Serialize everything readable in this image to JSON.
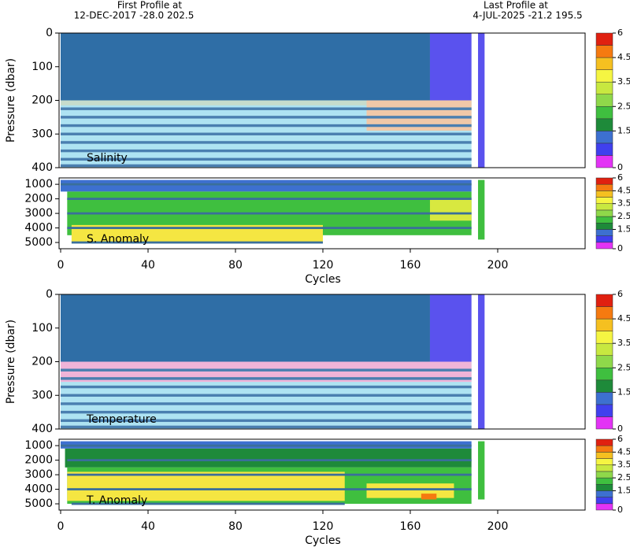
{
  "header": {
    "first_label": "First Profile at",
    "first_info": "12-DEC-2017   -28.0 202.5",
    "last_label": "Last Profile at",
    "last_info": "4-JUL-2025   -21.2 195.5"
  },
  "chart_data": [
    {
      "type": "section",
      "label": "Salinity",
      "ylabel": "Pressure (dbar)",
      "xlim": [
        0,
        240
      ],
      "ylim": [
        0,
        400
      ],
      "yticks": [
        0,
        100,
        200,
        300,
        400
      ],
      "blocks": [
        {
          "x": [
            0,
            169
          ],
          "y": [
            0,
            200
          ],
          "color": "#2f6ea6"
        },
        {
          "x": [
            169,
            188
          ],
          "y": [
            0,
            200
          ],
          "color": "#5a52ee"
        },
        {
          "x": [
            0,
            188
          ],
          "y": [
            200,
            400
          ],
          "color": "#aee3f2"
        },
        {
          "x": [
            0,
            188
          ],
          "y": [
            200,
            215
          ],
          "color": "#c7dccc"
        },
        {
          "x": [
            140,
            188
          ],
          "y": [
            200,
            290
          ],
          "color": "#f0c8a8"
        },
        {
          "x": [
            0,
            188
          ],
          "y": [
            221,
            229
          ],
          "color": "#4a7fb0"
        },
        {
          "x": [
            0,
            188
          ],
          "y": [
            246,
            254
          ],
          "color": "#4a7fb0"
        },
        {
          "x": [
            0,
            188
          ],
          "y": [
            271,
            279
          ],
          "color": "#4a7fb0"
        },
        {
          "x": [
            0,
            188
          ],
          "y": [
            296,
            304
          ],
          "color": "#4a7fb0"
        },
        {
          "x": [
            0,
            188
          ],
          "y": [
            321,
            329
          ],
          "color": "#4a7fb0"
        },
        {
          "x": [
            0,
            188
          ],
          "y": [
            346,
            354
          ],
          "color": "#4a7fb0"
        },
        {
          "x": [
            0,
            188
          ],
          "y": [
            371,
            379
          ],
          "color": "#4a7fb0"
        },
        {
          "x": [
            0,
            188
          ],
          "y": [
            390,
            398
          ],
          "color": "#4a7fb0"
        },
        {
          "x": [
            191,
            194
          ],
          "y": [
            0,
            400
          ],
          "color": "#5a52ee"
        }
      ],
      "colorbar": {
        "bounds": [
          0,
          0.5,
          1,
          1.5,
          2,
          2.5,
          3,
          3.5,
          4,
          4.5,
          5,
          6
        ],
        "colors": [
          "#e333f5",
          "#4040ee",
          "#3d70d0",
          "#1e8a3a",
          "#3fbf3f",
          "#8fd84a",
          "#c8e840",
          "#f5f542",
          "#f5c020",
          "#f57a10",
          "#e02010"
        ],
        "ticks": [
          0,
          1.5,
          2.5,
          3.5,
          4.5,
          6
        ]
      }
    },
    {
      "type": "section",
      "label": "S. Anomaly",
      "xlabel": "Cycles",
      "xlim": [
        0,
        240
      ],
      "ylim": [
        560,
        5430
      ],
      "yticks": [
        1000,
        2000,
        3000,
        4000,
        5000
      ],
      "xticks": [
        0,
        40,
        80,
        120,
        160,
        200
      ],
      "blocks": [
        {
          "x": [
            0,
            188
          ],
          "y": [
            700,
            1500
          ],
          "color": "#3d70d0"
        },
        {
          "x": [
            3,
            188
          ],
          "y": [
            1500,
            4500
          ],
          "color": "#3fbf3f"
        },
        {
          "x": [
            5,
            120
          ],
          "y": [
            3800,
            5000
          ],
          "color": "#f5e642"
        },
        {
          "x": [
            169,
            188
          ],
          "y": [
            2000,
            3500
          ],
          "color": "#d8e840"
        },
        {
          "x": [
            0,
            188
          ],
          "y": [
            925,
            1075
          ],
          "color": "#3a6f9a"
        },
        {
          "x": [
            3,
            188
          ],
          "y": [
            1925,
            2075
          ],
          "color": "#3a6f9a"
        },
        {
          "x": [
            3,
            188
          ],
          "y": [
            2925,
            3075
          ],
          "color": "#3a6f9a"
        },
        {
          "x": [
            3,
            188
          ],
          "y": [
            3925,
            4075
          ],
          "color": "#3a6f9a"
        },
        {
          "x": [
            5,
            120
          ],
          "y": [
            4925,
            5075
          ],
          "color": "#3a6f9a"
        },
        {
          "x": [
            191,
            194
          ],
          "y": [
            700,
            4800
          ],
          "color": "#3fbf3f"
        }
      ],
      "colorbar": {
        "bounds": [
          0,
          0.5,
          1,
          1.5,
          2,
          2.5,
          3,
          3.5,
          4,
          4.5,
          5,
          6
        ],
        "colors": [
          "#e333f5",
          "#4040ee",
          "#3d70d0",
          "#1e8a3a",
          "#3fbf3f",
          "#8fd84a",
          "#c8e840",
          "#f5f542",
          "#f5c020",
          "#f57a10",
          "#e02010"
        ],
        "ticks": [
          0,
          1.5,
          2.5,
          3.5,
          4.5,
          6
        ]
      }
    },
    {
      "type": "section",
      "label": "Temperature",
      "ylabel": "Pressure (dbar)",
      "xlim": [
        0,
        240
      ],
      "ylim": [
        0,
        400
      ],
      "yticks": [
        0,
        100,
        200,
        300,
        400
      ],
      "blocks": [
        {
          "x": [
            0,
            169
          ],
          "y": [
            0,
            200
          ],
          "color": "#2f6ea6"
        },
        {
          "x": [
            169,
            188
          ],
          "y": [
            0,
            200
          ],
          "color": "#5a52ee"
        },
        {
          "x": [
            0,
            188
          ],
          "y": [
            200,
            400
          ],
          "color": "#aee3f2"
        },
        {
          "x": [
            0,
            188
          ],
          "y": [
            200,
            260
          ],
          "color": "#f0b4d8"
        },
        {
          "x": [
            0,
            188
          ],
          "y": [
            221,
            229
          ],
          "color": "#4a7fb0"
        },
        {
          "x": [
            0,
            188
          ],
          "y": [
            246,
            254
          ],
          "color": "#4a7fb0"
        },
        {
          "x": [
            0,
            188
          ],
          "y": [
            271,
            279
          ],
          "color": "#4a7fb0"
        },
        {
          "x": [
            0,
            188
          ],
          "y": [
            296,
            304
          ],
          "color": "#4a7fb0"
        },
        {
          "x": [
            0,
            188
          ],
          "y": [
            321,
            329
          ],
          "color": "#4a7fb0"
        },
        {
          "x": [
            0,
            188
          ],
          "y": [
            346,
            354
          ],
          "color": "#4a7fb0"
        },
        {
          "x": [
            0,
            188
          ],
          "y": [
            371,
            379
          ],
          "color": "#4a7fb0"
        },
        {
          "x": [
            0,
            188
          ],
          "y": [
            390,
            398
          ],
          "color": "#4a7fb0"
        },
        {
          "x": [
            191,
            194
          ],
          "y": [
            0,
            400
          ],
          "color": "#5a52ee"
        }
      ],
      "colorbar": {
        "bounds": [
          0,
          0.5,
          1,
          1.5,
          2,
          2.5,
          3,
          3.5,
          4,
          4.5,
          5,
          6
        ],
        "colors": [
          "#e333f5",
          "#4040ee",
          "#3d70d0",
          "#1e8a3a",
          "#3fbf3f",
          "#8fd84a",
          "#c8e840",
          "#f5f542",
          "#f5c020",
          "#f57a10",
          "#e02010"
        ],
        "ticks": [
          0,
          1.5,
          2.5,
          3.5,
          4.5,
          6
        ]
      }
    },
    {
      "type": "section",
      "label": "T. Anomaly",
      "xlabel": "Cycles",
      "xlim": [
        0,
        240
      ],
      "ylim": [
        560,
        5430
      ],
      "yticks": [
        1000,
        2000,
        3000,
        4000,
        5000
      ],
      "xticks": [
        0,
        40,
        80,
        120,
        160,
        200
      ],
      "blocks": [
        {
          "x": [
            0,
            188
          ],
          "y": [
            700,
            1200
          ],
          "color": "#3d70d0"
        },
        {
          "x": [
            2,
            188
          ],
          "y": [
            1200,
            2500
          ],
          "color": "#1e8a3a"
        },
        {
          "x": [
            3,
            188
          ],
          "y": [
            2500,
            5000
          ],
          "color": "#3fbf3f"
        },
        {
          "x": [
            3,
            130
          ],
          "y": [
            2800,
            4800
          ],
          "color": "#f5e642"
        },
        {
          "x": [
            140,
            180
          ],
          "y": [
            3600,
            4600
          ],
          "color": "#f5e642"
        },
        {
          "x": [
            165,
            172
          ],
          "y": [
            4300,
            4700
          ],
          "color": "#f57a10"
        },
        {
          "x": [
            0,
            188
          ],
          "y": [
            925,
            1075
          ],
          "color": "#3a6f9a"
        },
        {
          "x": [
            3,
            188
          ],
          "y": [
            1925,
            2075
          ],
          "color": "#3a6f9a"
        },
        {
          "x": [
            3,
            188
          ],
          "y": [
            2925,
            3075
          ],
          "color": "#3a6f9a"
        },
        {
          "x": [
            3,
            188
          ],
          "y": [
            3925,
            4075
          ],
          "color": "#3a6f9a"
        },
        {
          "x": [
            5,
            130
          ],
          "y": [
            4925,
            5075
          ],
          "color": "#3a6f9a"
        },
        {
          "x": [
            191,
            194
          ],
          "y": [
            700,
            4700
          ],
          "color": "#3fbf3f"
        }
      ],
      "colorbar": {
        "bounds": [
          0,
          0.5,
          1,
          1.5,
          2,
          2.5,
          3,
          3.5,
          4,
          4.5,
          5,
          6
        ],
        "colors": [
          "#e333f5",
          "#4040ee",
          "#3d70d0",
          "#1e8a3a",
          "#3fbf3f",
          "#8fd84a",
          "#c8e840",
          "#f5f542",
          "#f5c020",
          "#f57a10",
          "#e02010"
        ],
        "ticks": [
          0,
          1.5,
          2.5,
          3.5,
          4.5,
          6
        ]
      }
    }
  ]
}
